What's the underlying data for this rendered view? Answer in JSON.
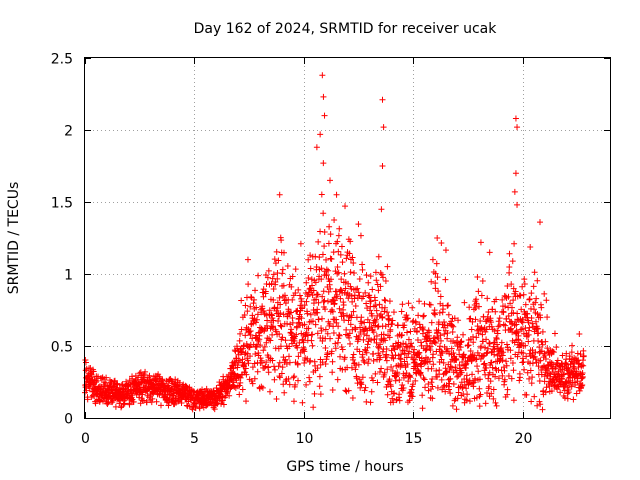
{
  "chart_data": {
    "type": "scatter",
    "title": "Day 162 of 2024, SRMTID for receiver ucak",
    "xlabel": "GPS time / hours",
    "ylabel": "SRMTID / TECUs",
    "xlim": [
      0,
      24
    ],
    "ylim": [
      0,
      2.5
    ],
    "xticks": [
      0,
      5,
      10,
      15,
      20
    ],
    "xtick_labels": [
      "0",
      "5",
      "10",
      "15",
      "20"
    ],
    "yticks": [
      0,
      0.5,
      1,
      1.5,
      2,
      2.5
    ],
    "ytick_labels": [
      "0",
      "0.5",
      "1",
      "1.5",
      "2",
      "2.5"
    ],
    "grid": true,
    "marker": "+",
    "color": "#ff0000",
    "series": [
      {
        "name": "SRMTID",
        "x_range": [
          0,
          22.8
        ],
        "trend": [
          [
            0.0,
            0.3
          ],
          [
            0.5,
            0.2
          ],
          [
            1.0,
            0.18
          ],
          [
            1.5,
            0.17
          ],
          [
            2.0,
            0.17
          ],
          [
            2.5,
            0.22
          ],
          [
            3.0,
            0.22
          ],
          [
            3.5,
            0.2
          ],
          [
            4.0,
            0.18
          ],
          [
            4.5,
            0.16
          ],
          [
            5.0,
            0.14
          ],
          [
            5.5,
            0.13
          ],
          [
            6.0,
            0.15
          ],
          [
            6.5,
            0.22
          ],
          [
            7.0,
            0.35
          ],
          [
            7.5,
            0.5
          ],
          [
            8.0,
            0.55
          ],
          [
            8.5,
            0.65
          ],
          [
            9.0,
            0.7
          ],
          [
            9.5,
            0.6
          ],
          [
            10.0,
            0.5
          ],
          [
            10.5,
            0.75
          ],
          [
            11.0,
            0.85
          ],
          [
            11.5,
            0.75
          ],
          [
            12.0,
            0.7
          ],
          [
            12.5,
            0.6
          ],
          [
            13.0,
            0.55
          ],
          [
            13.5,
            0.65
          ],
          [
            14.0,
            0.4
          ],
          [
            14.5,
            0.4
          ],
          [
            15.0,
            0.45
          ],
          [
            15.5,
            0.45
          ],
          [
            16.0,
            0.55
          ],
          [
            16.5,
            0.55
          ],
          [
            17.0,
            0.35
          ],
          [
            17.5,
            0.4
          ],
          [
            18.0,
            0.55
          ],
          [
            18.5,
            0.45
          ],
          [
            19.0,
            0.5
          ],
          [
            19.5,
            0.65
          ],
          [
            20.0,
            0.55
          ],
          [
            20.5,
            0.6
          ],
          [
            21.0,
            0.4
          ],
          [
            21.5,
            0.3
          ],
          [
            22.0,
            0.3
          ],
          [
            22.8,
            0.3
          ]
        ],
        "spikes": [
          [
            8.9,
            1.55
          ],
          [
            10.6,
            1.88
          ],
          [
            10.85,
            2.38
          ],
          [
            10.9,
            2.23
          ],
          [
            10.95,
            2.1
          ],
          [
            10.75,
            1.97
          ],
          [
            13.6,
            2.21
          ],
          [
            13.65,
            2.02
          ],
          [
            13.6,
            1.75
          ],
          [
            13.55,
            1.45
          ],
          [
            19.7,
            2.08
          ],
          [
            19.75,
            2.02
          ],
          [
            19.7,
            1.7
          ],
          [
            19.65,
            1.57
          ],
          [
            19.75,
            1.48
          ],
          [
            20.8,
            1.36
          ],
          [
            16.1,
            1.25
          ],
          [
            18.1,
            1.22
          ],
          [
            18.5,
            1.15
          ],
          [
            7.45,
            1.1
          ],
          [
            11.2,
            1.65
          ],
          [
            11.5,
            1.55
          ]
        ]
      }
    ]
  }
}
